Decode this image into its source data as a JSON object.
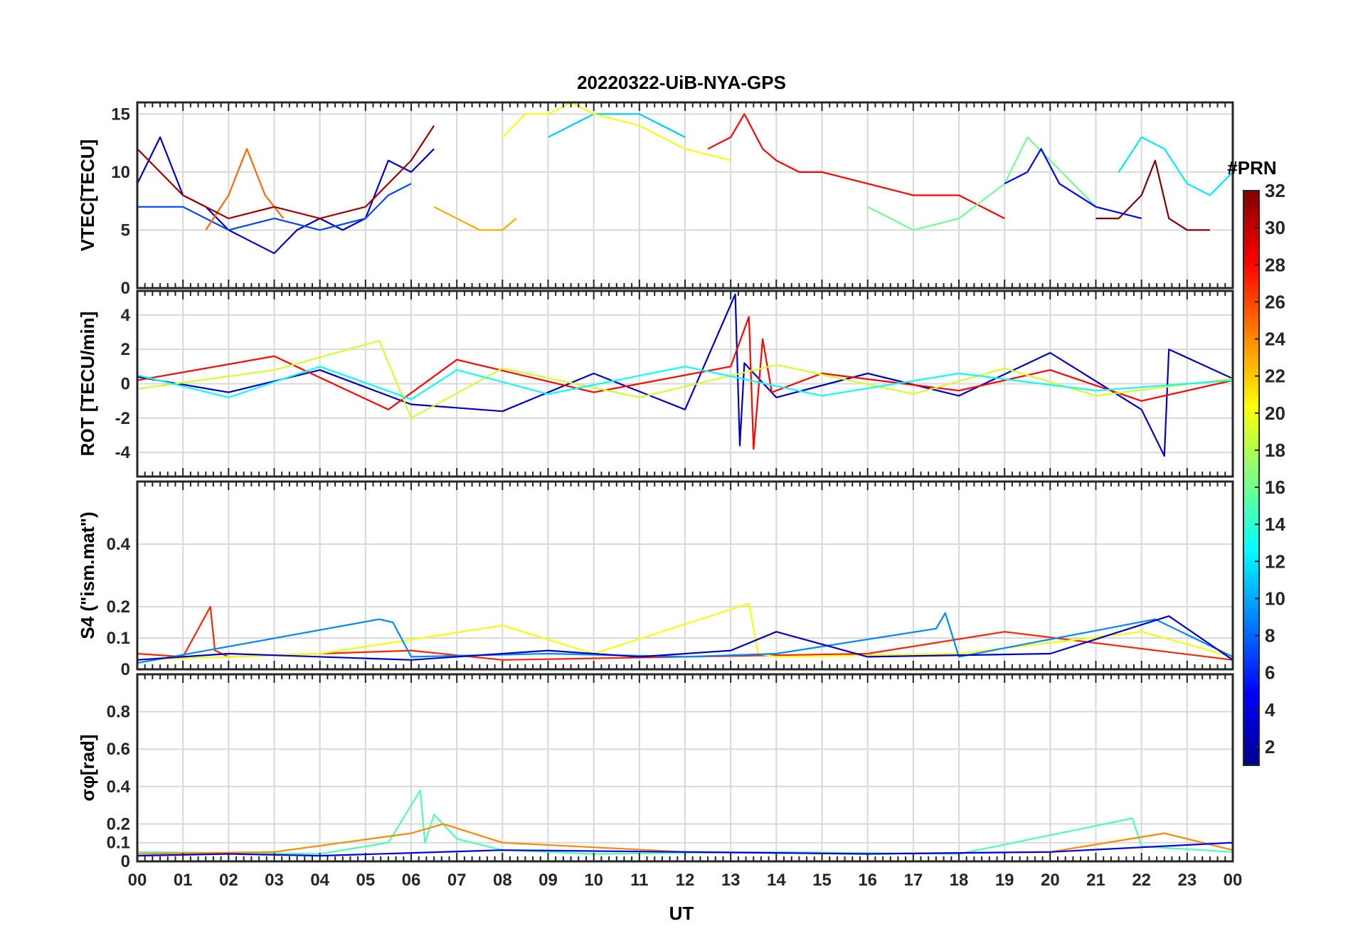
{
  "chart_data": {
    "type": "line",
    "title": "20220322-UiB-NYA-GPS",
    "xlabel": "UT",
    "x_tick_labels": [
      "00",
      "01",
      "02",
      "03",
      "04",
      "05",
      "06",
      "07",
      "08",
      "09",
      "10",
      "11",
      "12",
      "13",
      "14",
      "15",
      "16",
      "17",
      "18",
      "19",
      "20",
      "21",
      "22",
      "23",
      "00"
    ],
    "xlim": [
      0,
      24
    ],
    "grid": true,
    "colorbar": {
      "label": "#PRN",
      "range": [
        1,
        32
      ],
      "ticks": [
        2,
        4,
        6,
        8,
        10,
        12,
        14,
        16,
        18,
        20,
        22,
        24,
        26,
        28,
        30,
        32
      ],
      "colormap": "jet",
      "colors": [
        "#00008f",
        "#0000ff",
        "#0080ff",
        "#00ffff",
        "#80ff80",
        "#ffff00",
        "#ff8000",
        "#ff0000",
        "#800000"
      ]
    },
    "panels": [
      {
        "id": "vtec",
        "ylabel": "VTEC[TECU]",
        "ylim": [
          0,
          16
        ],
        "yticks": [
          0,
          5,
          10,
          15
        ],
        "series": [
          {
            "prn": 3,
            "x": [
              0,
              0.5,
              1,
              1.5,
              2,
              2.5,
              3,
              3.5,
              4,
              4.5,
              5,
              5.5,
              6,
              6.5
            ],
            "y": [
              9,
              13,
              8,
              7,
              5,
              4,
              3,
              5,
              6,
              5,
              6,
              11,
              10,
              12
            ]
          },
          {
            "prn": 7,
            "x": [
              0,
              1,
              2,
              3,
              4,
              5,
              5.5,
              6
            ],
            "y": [
              7,
              7,
              5,
              6,
              5,
              6,
              8,
              9
            ]
          },
          {
            "prn": 11,
            "x": [
              9,
              9.5,
              10,
              10.5,
              11,
              11.5,
              12
            ],
            "y": [
              13,
              14,
              15,
              15,
              15,
              14,
              13
            ]
          },
          {
            "prn": 20,
            "x": [
              8,
              8.5,
              9,
              9.5,
              10,
              11,
              12,
              13
            ],
            "y": [
              13,
              15,
              15,
              16,
              15,
              14,
              12,
              11
            ]
          },
          {
            "prn": 23,
            "x": [
              6.5,
              7,
              7.5,
              8,
              8.3
            ],
            "y": [
              7,
              6,
              5,
              5,
              6
            ]
          },
          {
            "prn": 25,
            "x": [
              1.5,
              2,
              2.4,
              2.8,
              3.2
            ],
            "y": [
              5,
              8,
              12,
              8,
              6
            ]
          },
          {
            "prn": 28,
            "x": [
              12.5,
              13,
              13.3,
              13.7,
              14,
              14.5,
              15,
              16,
              17,
              18,
              19
            ],
            "y": [
              12,
              13,
              15,
              12,
              11,
              10,
              10,
              9,
              8,
              8,
              6
            ]
          },
          {
            "prn": 31,
            "x": [
              0,
              1,
              2,
              3,
              4,
              5,
              6,
              6.5
            ],
            "y": [
              12,
              8,
              6,
              7,
              6,
              7,
              11,
              14
            ]
          },
          {
            "prn": 16,
            "x": [
              16,
              17,
              18,
              19,
              19.5,
              20,
              21
            ],
            "y": [
              7,
              5,
              6,
              9,
              13,
              11,
              7
            ]
          },
          {
            "prn": 12,
            "x": [
              21.5,
              22,
              22.5,
              23,
              23.5,
              24
            ],
            "y": [
              10,
              13,
              12,
              9,
              8,
              10
            ]
          },
          {
            "prn": 32,
            "x": [
              21,
              21.5,
              22,
              22.3,
              22.6,
              23,
              23.5
            ],
            "y": [
              6,
              6,
              8,
              11,
              6,
              5,
              5
            ]
          },
          {
            "prn": 5,
            "x": [
              19,
              19.5,
              19.8,
              20.2,
              21,
              22
            ],
            "y": [
              9,
              10,
              12,
              9,
              7,
              6
            ]
          }
        ]
      },
      {
        "id": "rot",
        "ylabel": "ROT [TECU/min]",
        "ylim": [
          -5.4,
          5.4
        ],
        "yticks": [
          -4,
          -2,
          0,
          2,
          4
        ],
        "series": [
          {
            "prn": 3,
            "x": [
              0,
              2,
              4,
              6,
              8,
              10,
              12,
              13.1,
              13.2,
              13.3,
              14,
              16,
              18,
              20,
              22,
              22.5,
              22.6,
              24
            ],
            "y": [
              0.4,
              -0.5,
              0.8,
              -1.2,
              -1.6,
              0.6,
              -1.5,
              5.2,
              -3.6,
              1.2,
              -0.8,
              0.6,
              -0.7,
              1.8,
              -1.5,
              -4.2,
              2,
              0.3
            ]
          },
          {
            "prn": 28,
            "x": [
              0,
              3,
              5.5,
              7,
              10,
              13,
              13.4,
              13.5,
              13.7,
              13.9,
              15,
              18,
              20,
              22,
              24
            ],
            "y": [
              0.2,
              1.6,
              -1.5,
              1.4,
              -0.5,
              1,
              3.9,
              -3.8,
              2.6,
              -0.5,
              0.6,
              -0.4,
              0.8,
              -1,
              0.2
            ]
          },
          {
            "prn": 19,
            "x": [
              0,
              3,
              5.3,
              6,
              8,
              11,
              14,
              17,
              19,
              21,
              24
            ],
            "y": [
              -0.3,
              0.8,
              2.5,
              -2,
              0.9,
              -0.8,
              1.1,
              -0.6,
              0.9,
              -0.7,
              0.3
            ]
          },
          {
            "prn": 13,
            "x": [
              0,
              2,
              4,
              6,
              7,
              9,
              12,
              15,
              18,
              21,
              24
            ],
            "y": [
              0.5,
              -0.8,
              1,
              -0.9,
              0.8,
              -0.6,
              1,
              -0.7,
              0.6,
              -0.4,
              0.2
            ]
          }
        ]
      },
      {
        "id": "s4",
        "ylabel": "S4 (\"ism.mat\")",
        "ylim": [
          0,
          0.6
        ],
        "yticks": [
          0,
          0.1,
          0.2,
          0.4
        ],
        "series": [
          {
            "prn": 27,
            "x": [
              0,
              1,
              1.6,
              1.7,
              2,
              4,
              6,
              8,
              12,
              16,
              19,
              24
            ],
            "y": [
              0.05,
              0.04,
              0.2,
              0.06,
              0.04,
              0.05,
              0.06,
              0.03,
              0.04,
              0.05,
              0.12,
              0.03
            ]
          },
          {
            "prn": 20,
            "x": [
              0,
              4,
              8,
              10,
              13.4,
              13.6,
              14,
              18,
              22,
              24
            ],
            "y": [
              0.03,
              0.05,
              0.14,
              0.05,
              0.21,
              0.05,
              0.04,
              0.05,
              0.12,
              0.04
            ]
          },
          {
            "prn": 9,
            "x": [
              0,
              5.3,
              5.6,
              6,
              9,
              12,
              14,
              17.5,
              17.7,
              18,
              22.3,
              24
            ],
            "y": [
              0.02,
              0.16,
              0.15,
              0.04,
              0.05,
              0.04,
              0.05,
              0.13,
              0.18,
              0.04,
              0.16,
              0.04
            ]
          },
          {
            "prn": 3,
            "x": [
              0,
              2,
              6,
              9,
              11,
              13,
              14,
              16,
              20,
              22.6,
              24
            ],
            "y": [
              0.03,
              0.05,
              0.03,
              0.06,
              0.04,
              0.06,
              0.12,
              0.04,
              0.05,
              0.17,
              0.03
            ]
          }
        ]
      },
      {
        "id": "sigphi",
        "ylabel": "σφ[rad]",
        "ylim": [
          0,
          1
        ],
        "yticks": [
          0,
          0.1,
          0.2,
          0.4,
          0.6,
          0.8
        ],
        "series": [
          {
            "prn": 15,
            "x": [
              0,
              4,
              5.5,
              6.2,
              6.3,
              6.5,
              7,
              8,
              10,
              14,
              18,
              21.8,
              22,
              24
            ],
            "y": [
              0.05,
              0.04,
              0.1,
              0.38,
              0.1,
              0.25,
              0.12,
              0.06,
              0.04,
              0.05,
              0.04,
              0.23,
              0.08,
              0.05
            ]
          },
          {
            "prn": 24,
            "x": [
              0,
              3,
              6,
              6.7,
              8,
              12,
              16,
              20,
              22.5,
              24
            ],
            "y": [
              0.04,
              0.05,
              0.15,
              0.2,
              0.1,
              0.05,
              0.04,
              0.05,
              0.15,
              0.06
            ]
          },
          {
            "prn": 4,
            "x": [
              0,
              2,
              4,
              8,
              12,
              16,
              20,
              24
            ],
            "y": [
              0.03,
              0.04,
              0.03,
              0.06,
              0.05,
              0.04,
              0.05,
              0.1
            ]
          }
        ]
      }
    ]
  }
}
